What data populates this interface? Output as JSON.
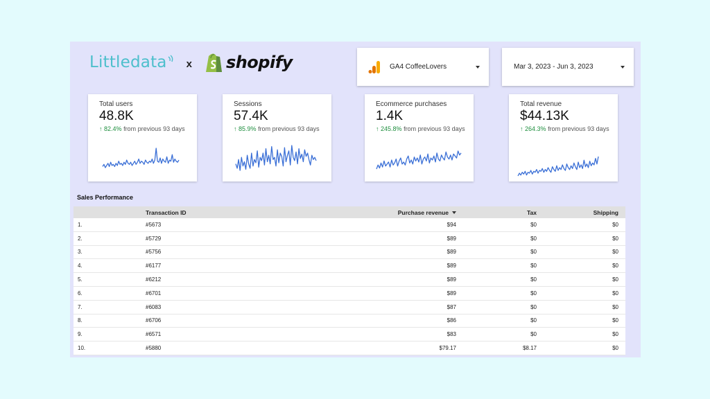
{
  "brand": {
    "littledata": "Littledata",
    "separator": "x",
    "shopify": "shopify"
  },
  "selectors": {
    "property": "GA4 CoffeeLovers",
    "date_range": "Mar 3, 2023 - Jun 3, 2023"
  },
  "colors": {
    "accent_line": "#3a6fd6",
    "positive": "#1e8e3e",
    "littledata_teal": "#4dbfcc",
    "shopify_green": "#95bf47",
    "ga_orange": "#f9ab00",
    "ga_dark_orange": "#e37400"
  },
  "kpis": [
    {
      "label": "Total users",
      "value": "48.8K",
      "delta": "82.4%",
      "delta_suffix": "from previous 93 days",
      "trend": [
        5,
        7,
        4,
        6,
        8,
        5,
        9,
        6,
        7,
        5,
        8,
        6,
        10,
        7,
        8,
        6,
        9,
        7,
        11,
        8,
        7,
        9,
        6,
        8,
        10,
        7,
        9,
        12,
        8,
        10,
        9,
        7,
        11,
        9,
        8,
        10,
        9,
        12,
        8,
        11,
        22,
        10,
        9,
        13,
        8,
        12,
        10,
        9,
        14,
        8,
        11,
        10,
        16,
        9,
        12,
        10,
        9,
        11
      ]
    },
    {
      "label": "Sessions",
      "value": "57.4K",
      "delta": "85.9%",
      "delta_suffix": "from previous 93 days",
      "trend": [
        14,
        10,
        18,
        8,
        20,
        12,
        16,
        9,
        22,
        14,
        10,
        24,
        12,
        18,
        15,
        26,
        11,
        20,
        17,
        24,
        13,
        28,
        16,
        22,
        14,
        30,
        18,
        20,
        12,
        27,
        15,
        24,
        21,
        12,
        29,
        16,
        22,
        26,
        13,
        31,
        20,
        17,
        25,
        14,
        28,
        19,
        23,
        16,
        27,
        21,
        24,
        18,
        13,
        22,
        18,
        20,
        17
      ]
    },
    {
      "label": "Ecommerce purchases",
      "value": "1.4K",
      "delta": "245.8%",
      "delta_suffix": "from previous 93 days",
      "trend": [
        8,
        12,
        9,
        14,
        10,
        16,
        11,
        13,
        15,
        10,
        17,
        12,
        14,
        18,
        11,
        16,
        19,
        13,
        15,
        12,
        18,
        21,
        14,
        17,
        13,
        20,
        16,
        19,
        15,
        22,
        13,
        18,
        20,
        16,
        23,
        14,
        19,
        17,
        21,
        15,
        24,
        18,
        16,
        22,
        19,
        17,
        25,
        20,
        18,
        22,
        17,
        23,
        21,
        19,
        26,
        22,
        24
      ]
    },
    {
      "label": "Total revenue",
      "value": "$44.13K",
      "delta": "264.3%",
      "delta_suffix": "from previous 93 days",
      "trend": [
        5,
        8,
        6,
        9,
        7,
        10,
        6,
        9,
        8,
        11,
        7,
        10,
        9,
        12,
        8,
        11,
        10,
        13,
        9,
        12,
        10,
        14,
        11,
        9,
        15,
        12,
        10,
        16,
        11,
        14,
        12,
        17,
        13,
        11,
        18,
        14,
        12,
        16,
        13,
        19,
        15,
        12,
        20,
        14,
        17,
        13,
        22,
        15,
        18,
        14,
        21,
        16,
        19,
        17,
        24,
        18,
        26
      ]
    }
  ],
  "sales_table": {
    "title": "Sales Performance",
    "columns": [
      "",
      "Transaction ID",
      "Purchase revenue",
      "Tax",
      "Shipping"
    ],
    "rows": [
      [
        "1.",
        "#5673",
        "$94",
        "$0",
        "$0"
      ],
      [
        "2.",
        "#5729",
        "$89",
        "$0",
        "$0"
      ],
      [
        "3.",
        "#5756",
        "$89",
        "$0",
        "$0"
      ],
      [
        "4.",
        "#6177",
        "$89",
        "$0",
        "$0"
      ],
      [
        "5.",
        "#6212",
        "$89",
        "$0",
        "$0"
      ],
      [
        "6.",
        "#6701",
        "$89",
        "$0",
        "$0"
      ],
      [
        "7.",
        "#6083",
        "$87",
        "$0",
        "$0"
      ],
      [
        "8.",
        "#6706",
        "$86",
        "$0",
        "$0"
      ],
      [
        "9.",
        "#6571",
        "$83",
        "$0",
        "$0"
      ],
      [
        "10.",
        "#5880",
        "$79.17",
        "$8.17",
        "$0"
      ]
    ]
  }
}
